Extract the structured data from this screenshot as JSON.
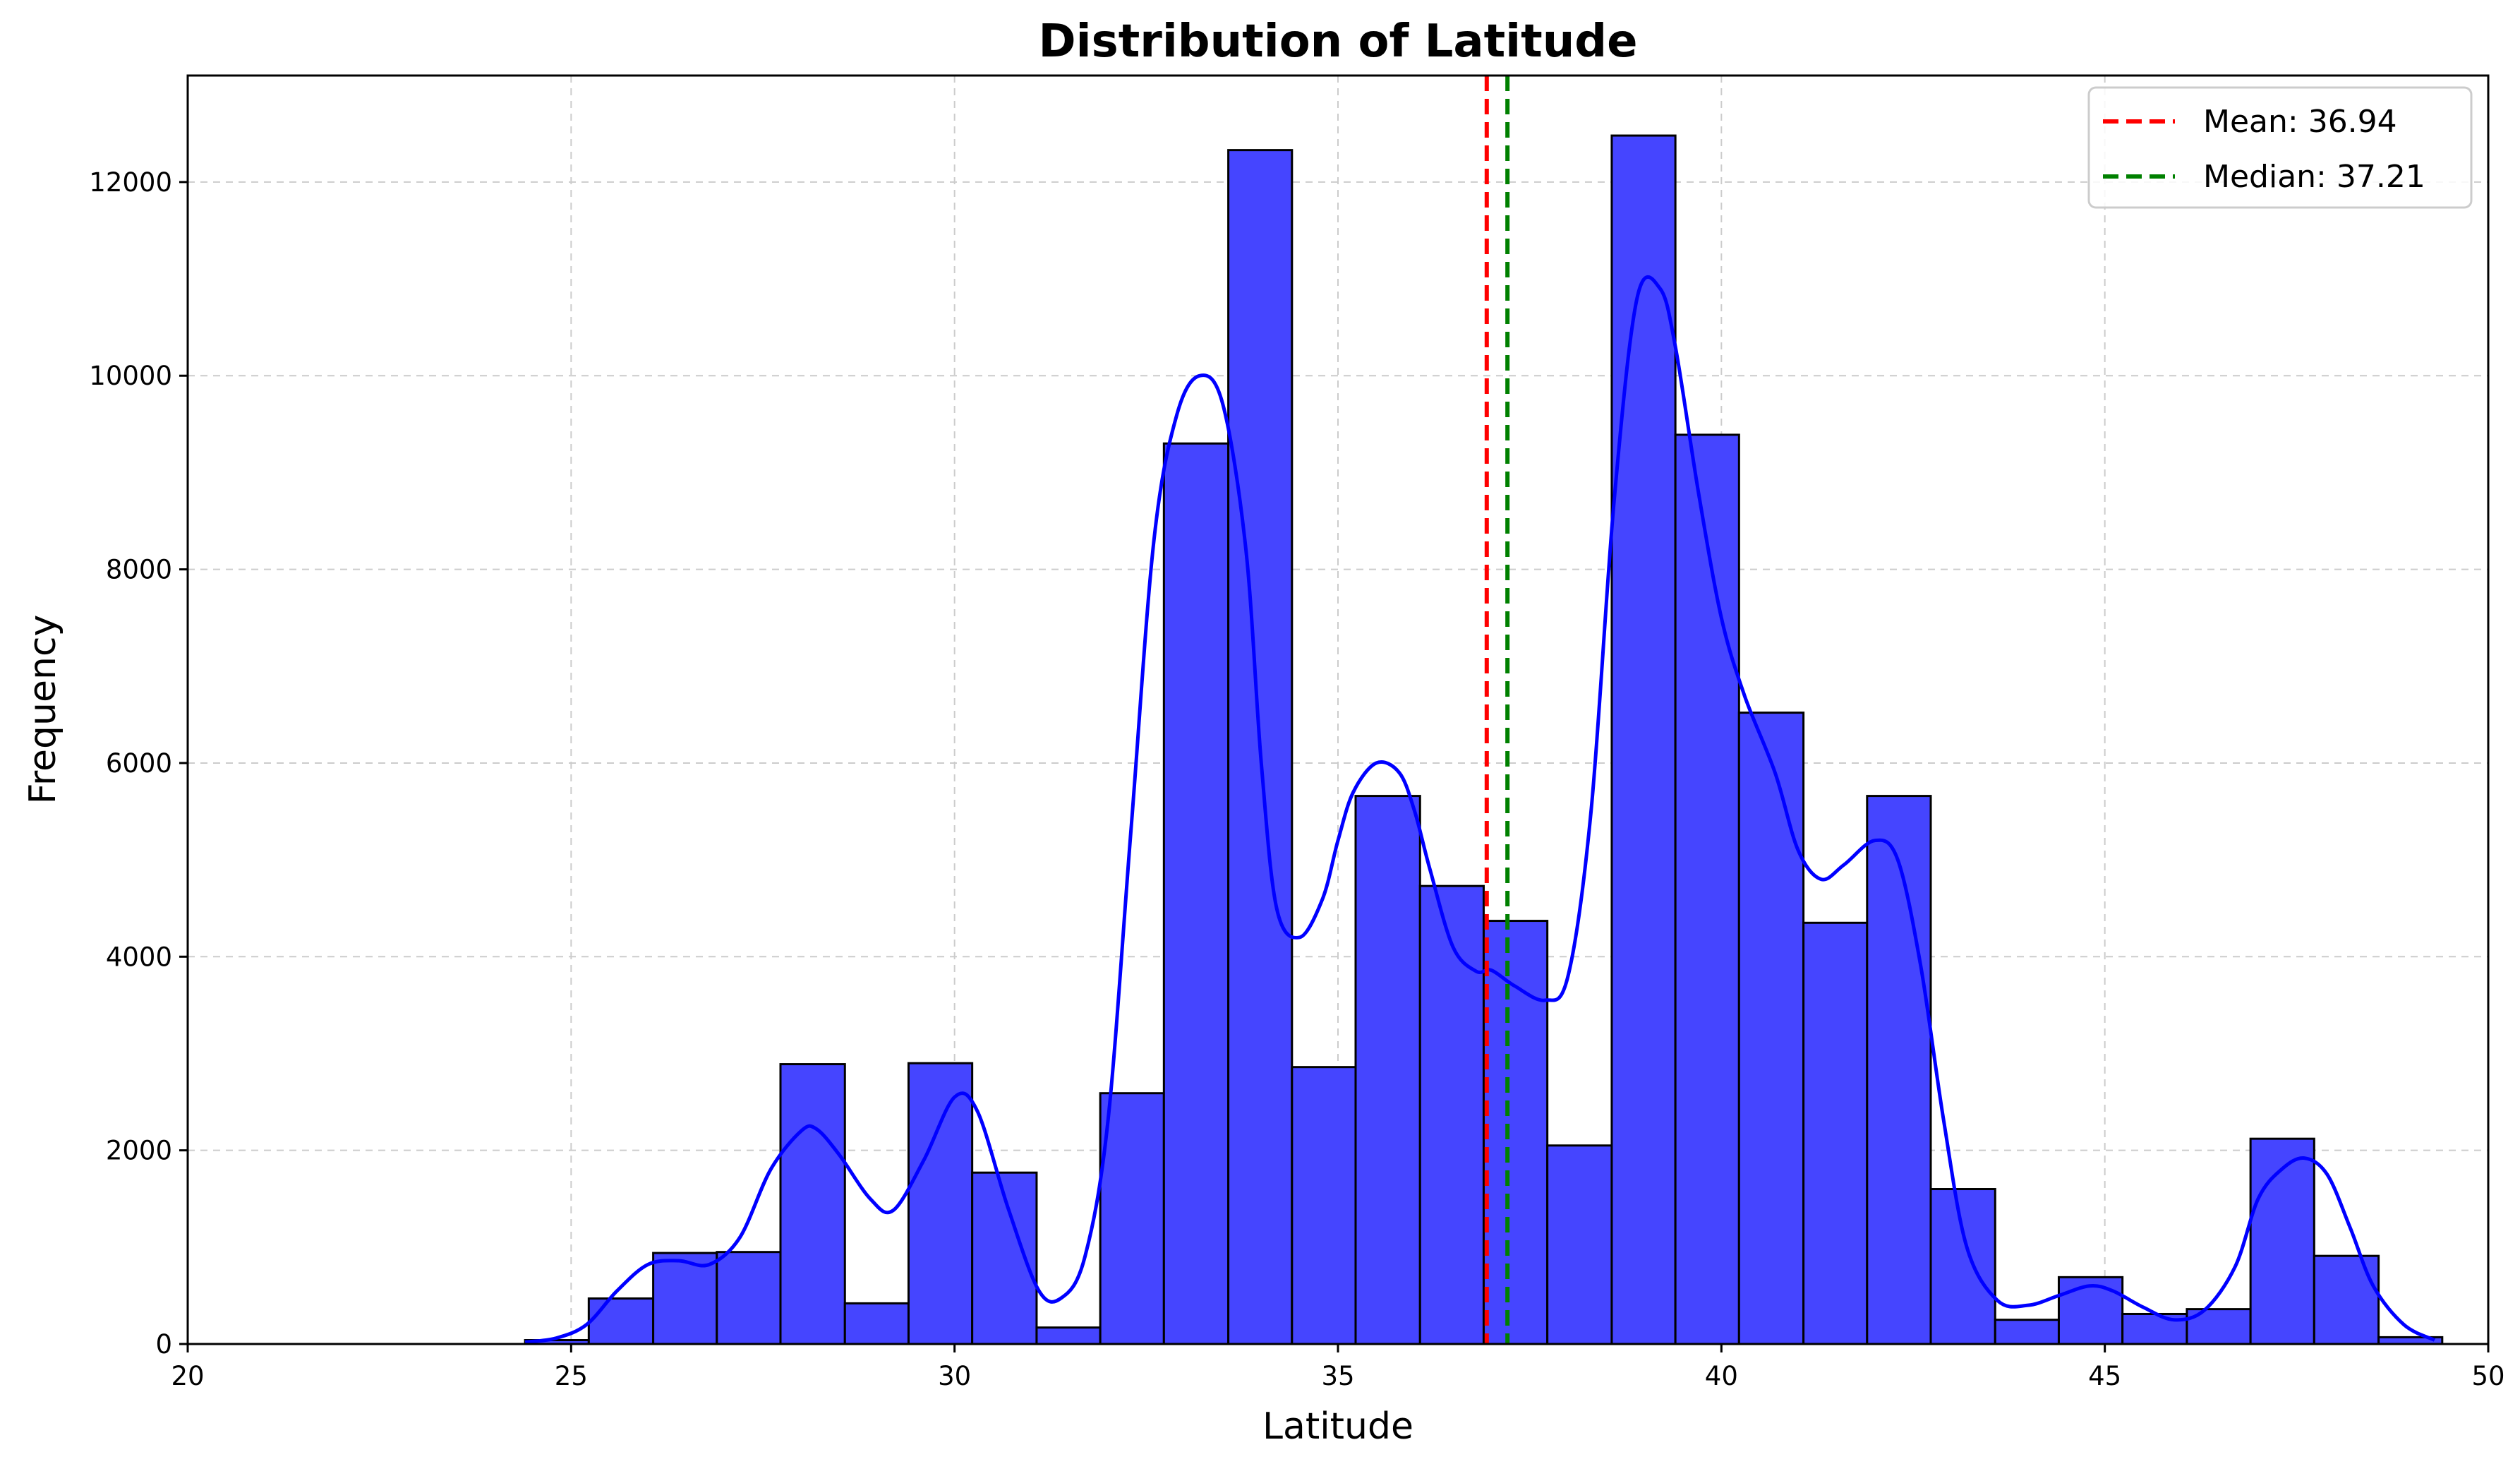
{
  "chart_data": {
    "type": "bar",
    "title": "Distribution of Latitude",
    "xlabel": "Latitude",
    "ylabel": "Frequency",
    "xlim": [
      20,
      50
    ],
    "ylim": [
      0,
      13100
    ],
    "xticks": [
      "20",
      "25",
      "30",
      "35",
      "40",
      "45",
      "50"
    ],
    "yticks": [
      "0",
      "2000",
      "4000",
      "6000",
      "8000",
      "10000",
      "12000"
    ],
    "grid": true,
    "legend_position": "top-right",
    "bins": [
      {
        "x0": 24.4,
        "x1": 25.23,
        "value": 40
      },
      {
        "x0": 25.23,
        "x1": 26.07,
        "value": 470
      },
      {
        "x0": 26.07,
        "x1": 26.9,
        "value": 940
      },
      {
        "x0": 26.9,
        "x1": 27.73,
        "value": 950
      },
      {
        "x0": 27.73,
        "x1": 28.57,
        "value": 2890
      },
      {
        "x0": 28.57,
        "x1": 29.4,
        "value": 420
      },
      {
        "x0": 29.4,
        "x1": 30.23,
        "value": 2900
      },
      {
        "x0": 30.23,
        "x1": 31.07,
        "value": 1770
      },
      {
        "x0": 31.07,
        "x1": 31.9,
        "value": 170
      },
      {
        "x0": 31.9,
        "x1": 32.73,
        "value": 2590
      },
      {
        "x0": 32.73,
        "x1": 33.57,
        "value": 9300
      },
      {
        "x0": 33.57,
        "x1": 34.4,
        "value": 12330
      },
      {
        "x0": 34.4,
        "x1": 35.23,
        "value": 2860
      },
      {
        "x0": 35.23,
        "x1": 36.07,
        "value": 5660
      },
      {
        "x0": 36.07,
        "x1": 36.9,
        "value": 4730
      },
      {
        "x0": 36.9,
        "x1": 37.73,
        "value": 4370
      },
      {
        "x0": 37.73,
        "x1": 38.57,
        "value": 2050
      },
      {
        "x0": 38.57,
        "x1": 39.4,
        "value": 12480
      },
      {
        "x0": 39.4,
        "x1": 40.23,
        "value": 9390
      },
      {
        "x0": 40.23,
        "x1": 41.07,
        "value": 6520
      },
      {
        "x0": 41.07,
        "x1": 41.9,
        "value": 4350
      },
      {
        "x0": 41.9,
        "x1": 42.73,
        "value": 5660
      },
      {
        "x0": 42.73,
        "x1": 43.57,
        "value": 1600
      },
      {
        "x0": 43.57,
        "x1": 44.4,
        "value": 250
      },
      {
        "x0": 44.4,
        "x1": 45.23,
        "value": 690
      },
      {
        "x0": 45.23,
        "x1": 46.07,
        "value": 310
      },
      {
        "x0": 46.07,
        "x1": 46.9,
        "value": 360
      },
      {
        "x0": 46.9,
        "x1": 47.73,
        "value": 2120
      },
      {
        "x0": 47.73,
        "x1": 48.57,
        "value": 910
      },
      {
        "x0": 48.57,
        "x1": 49.4,
        "value": 70
      }
    ],
    "kde": {
      "x": [
        24.4,
        24.8,
        25.2,
        25.6,
        26.0,
        26.4,
        26.8,
        27.2,
        27.6,
        28.0,
        28.2,
        28.5,
        28.9,
        29.2,
        29.6,
        30.0,
        30.3,
        30.7,
        31.1,
        31.4,
        31.7,
        32.0,
        32.3,
        32.6,
        32.9,
        33.2,
        33.5,
        33.8,
        34.0,
        34.2,
        34.5,
        34.8,
        35.0,
        35.2,
        35.5,
        35.8,
        36.0,
        36.2,
        36.5,
        36.8,
        37.0,
        37.3,
        37.7,
        38.0,
        38.3,
        38.6,
        38.9,
        39.2,
        39.4,
        39.7,
        40.0,
        40.3,
        40.7,
        41.0,
        41.3,
        41.6,
        42.0,
        42.3,
        42.6,
        42.9,
        43.2,
        43.6,
        44.0,
        44.4,
        44.8,
        45.1,
        45.5,
        45.9,
        46.3,
        46.7,
        47.0,
        47.3,
        47.6,
        47.9,
        48.2,
        48.5,
        48.9,
        49.3
      ],
      "y": [
        20,
        60,
        200,
        550,
        820,
        860,
        820,
        1100,
        1800,
        2200,
        2220,
        1950,
        1500,
        1380,
        1900,
        2550,
        2400,
        1400,
        550,
        480,
        900,
        2300,
        5300,
        8300,
        9600,
        10000,
        9700,
        8200,
        6000,
        4500,
        4200,
        4600,
        5200,
        5700,
        6000,
        5900,
        5500,
        4900,
        4100,
        3850,
        3860,
        3700,
        3550,
        3800,
        5500,
        8700,
        10800,
        10900,
        10300,
        8800,
        7500,
        6700,
        5900,
        5100,
        4800,
        4950,
        5200,
        5000,
        3900,
        2300,
        1000,
        450,
        400,
        500,
        600,
        550,
        380,
        250,
        350,
        800,
        1500,
        1800,
        1920,
        1750,
        1200,
        600,
        200,
        40
      ],
      "color": "#0000ff"
    },
    "mean_line": {
      "x": 36.94,
      "label": "Mean: 36.94",
      "color": "#ff0000"
    },
    "median_line": {
      "x": 37.21,
      "label": "Median: 37.21",
      "color": "#008000"
    },
    "colors": {
      "bar_fill": "#4545ff",
      "bar_edge": "#000000",
      "grid": "#cccccc"
    }
  }
}
